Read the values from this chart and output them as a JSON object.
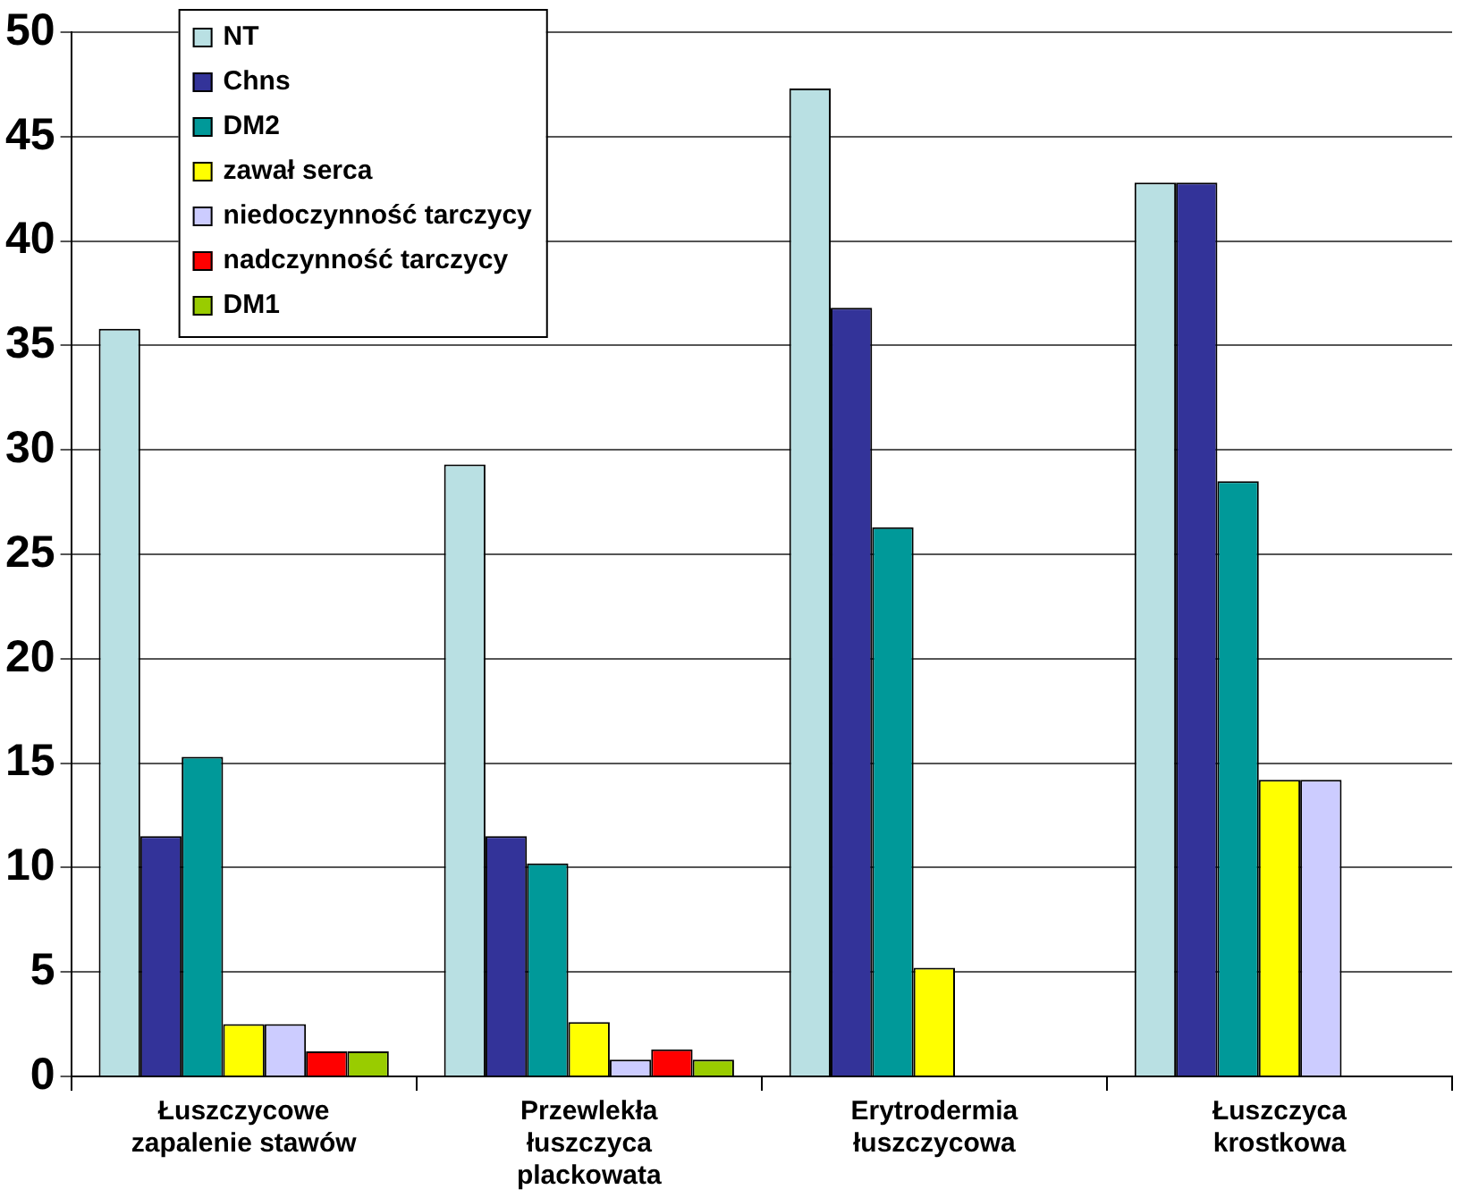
{
  "chart_data": {
    "type": "bar",
    "categories": [
      "Łuszczycowe zapalenie stawów",
      "Przewlekła łuszczyca plackowata",
      "Erytrodermia łuszczycowa",
      "Łuszczyca krostkowa"
    ],
    "series": [
      {
        "name": "NT",
        "color": "#b9e0e3",
        "values": [
          35.8,
          29.3,
          47.3,
          42.8
        ]
      },
      {
        "name": "Chns",
        "color": "#333399",
        "values": [
          11.5,
          11.5,
          36.8,
          42.8
        ]
      },
      {
        "name": "DM2",
        "color": "#009999",
        "values": [
          15.3,
          10.2,
          26.3,
          28.5
        ]
      },
      {
        "name": "zawał serca",
        "color": "#ffff00",
        "values": [
          2.5,
          2.6,
          5.2,
          14.2
        ]
      },
      {
        "name": "niedoczynność tarczycy",
        "color": "#ccccff",
        "values": [
          2.5,
          0.8,
          0,
          14.2
        ]
      },
      {
        "name": "nadczynność tarczycy",
        "color": "#ff0000",
        "values": [
          1.2,
          1.3,
          0,
          0
        ]
      },
      {
        "name": "DM1",
        "color": "#99cc00",
        "values": [
          1.2,
          0.8,
          0,
          0
        ]
      }
    ],
    "ylim": [
      0,
      50
    ],
    "yticks": [
      0,
      5,
      10,
      15,
      20,
      25,
      30,
      35,
      40,
      45,
      50
    ],
    "grid": "y",
    "legend": "top left"
  }
}
